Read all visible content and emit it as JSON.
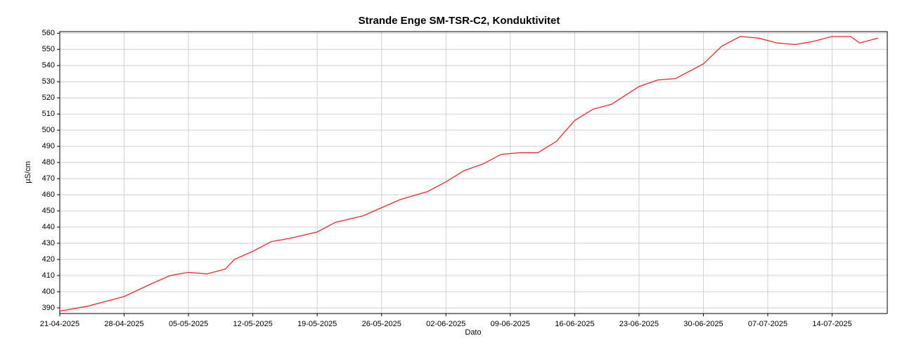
{
  "chart_data": {
    "type": "line",
    "title": "Strande Enge SM-TSR-C2, Konduktivitet",
    "x_label": "Dato",
    "y_label": "µS/cm",
    "x": [
      "21-04-2025",
      "24-04-2025",
      "26-04-2025",
      "28-04-2025",
      "01-05-2025",
      "03-05-2025",
      "05-05-2025",
      "07-05-2025",
      "09-05-2025",
      "10-05-2025",
      "12-05-2025",
      "14-05-2025",
      "16-05-2025",
      "19-05-2025",
      "21-05-2025",
      "24-05-2025",
      "26-05-2025",
      "28-05-2025",
      "31-05-2025",
      "02-06-2025",
      "04-06-2025",
      "06-06-2025",
      "08-06-2025",
      "10-06-2025",
      "12-06-2025",
      "14-06-2025",
      "16-06-2025",
      "18-06-2025",
      "20-06-2025",
      "23-06-2025",
      "25-06-2025",
      "27-06-2025",
      "30-06-2025",
      "02-07-2025",
      "04-07-2025",
      "06-07-2025",
      "08-07-2025",
      "10-07-2025",
      "12-07-2025",
      "14-07-2025",
      "16-07-2025",
      "17-07-2025",
      "19-07-2025"
    ],
    "series": [
      {
        "name": "Konduktivitet",
        "color": "#e8282e",
        "values": [
          388,
          391,
          394,
          397,
          405,
          410,
          412,
          411,
          414,
          420,
          425,
          431,
          433,
          437,
          443,
          447,
          452,
          457,
          462,
          468,
          475,
          479,
          485,
          486,
          486,
          493,
          506,
          513,
          516,
          527,
          531,
          532,
          541,
          552,
          558,
          557,
          554,
          553,
          555,
          558,
          558,
          554,
          557
        ]
      }
    ],
    "xlim": [
      "21-04-2025",
      "20-07-2025"
    ],
    "xticks": [
      "21-04-2025",
      "28-04-2025",
      "05-05-2025",
      "12-05-2025",
      "19-05-2025",
      "26-05-2025",
      "02-06-2025",
      "09-06-2025",
      "16-06-2025",
      "23-06-2025",
      "30-06-2025",
      "07-07-2025",
      "14-07-2025"
    ],
    "ylim": [
      386.5,
      561
    ],
    "yticks": [
      390,
      400,
      410,
      420,
      430,
      440,
      450,
      460,
      470,
      480,
      490,
      500,
      510,
      520,
      530,
      540,
      550,
      560
    ],
    "grid": true
  }
}
